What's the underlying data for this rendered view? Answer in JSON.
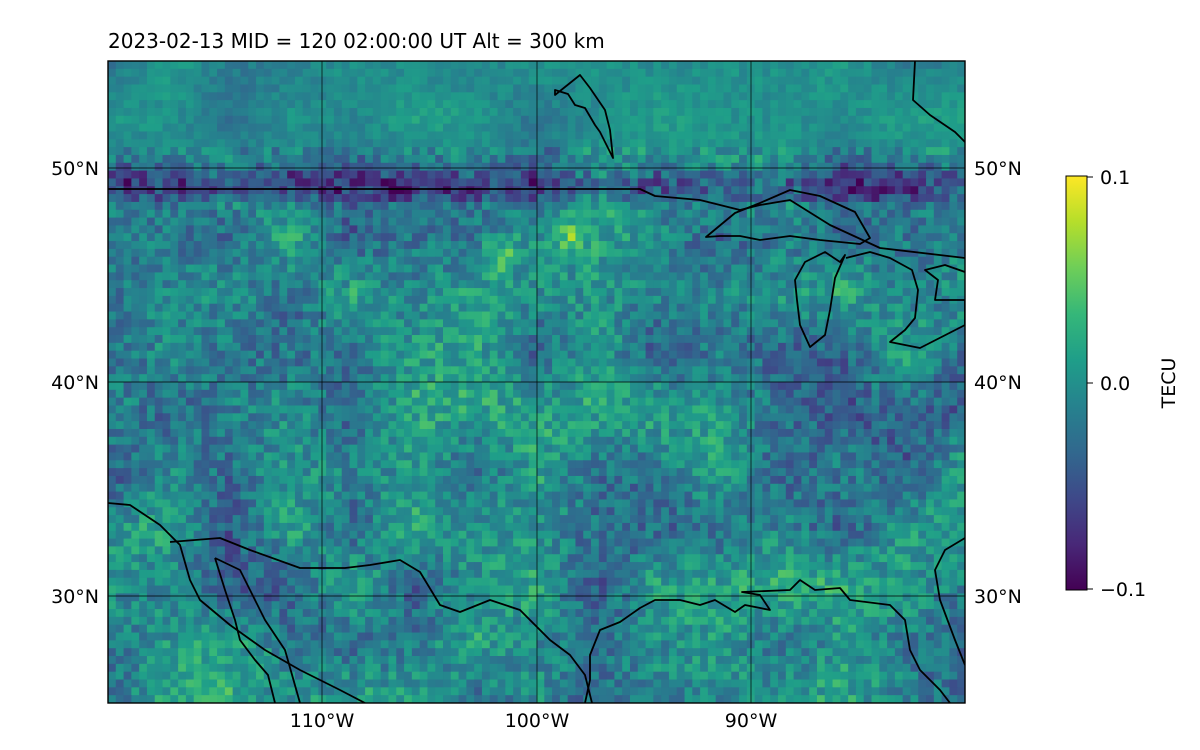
{
  "title": "2023-02-13  MID = 120    02:00:00  UT  Alt = 300 km",
  "map": {
    "lon_range": [
      -120,
      -80
    ],
    "lat_range": [
      25,
      55
    ],
    "lon_ticks": [
      -110,
      -100,
      -90
    ],
    "lat_ticks": [
      30,
      40,
      50
    ],
    "lon_tick_labels": [
      "110°W",
      "100°W",
      "90°W"
    ],
    "lat_tick_labels": [
      "30°N",
      "40°N",
      "50°N"
    ],
    "gridlines": true,
    "field": "TEC perturbation (dTEC)",
    "notable_features": [
      "dark purple negative band along 49-50°N",
      "yellow-green positive patches near 46°N, 101-104°W",
      "mostly teal background with speckled purple/green variability"
    ]
  },
  "colorbar": {
    "label": "TECU",
    "colormap": "viridis",
    "min": -0.1,
    "max": 0.1,
    "ticks": [
      0.1,
      0.0,
      -0.1
    ],
    "tick_labels": [
      "0.1",
      "0.0",
      "−0.1"
    ]
  },
  "colors": {
    "viridis": [
      "#440154",
      "#482878",
      "#3e4989",
      "#31688e",
      "#26828e",
      "#1f9e89",
      "#35b779",
      "#6ece58",
      "#b5de2b",
      "#fde725"
    ],
    "coastline": "#000000",
    "grid": "#000000"
  }
}
